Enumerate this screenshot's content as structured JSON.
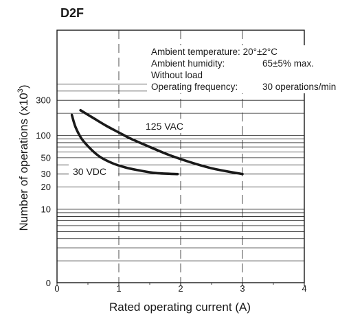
{
  "chart_data": {
    "type": "line",
    "title": "D2F",
    "xlabel": "Rated operating current (A)",
    "ylabel_main": "Number of operations  (x10",
    "ylabel_exp": "3",
    "ylabel_close": ")",
    "x_scale": "linear",
    "y_scale": "log",
    "xlim": [
      0,
      4
    ],
    "ylim": [
      1,
      600
    ],
    "x_ticks": [
      0,
      1,
      2,
      3,
      4
    ],
    "x_tick_labels": [
      "0",
      "1",
      "2",
      "3",
      "4"
    ],
    "y_labeled_ticks": [
      10,
      20,
      30,
      50,
      100,
      300
    ],
    "y_tick_labels": [
      "10",
      "20",
      "30",
      "50",
      "100",
      "300"
    ],
    "y_label_zero": "0",
    "grid": true,
    "series": [
      {
        "name": "125 VAC",
        "x": [
          0.38,
          0.6,
          0.8,
          1.0,
          1.2,
          1.5,
          1.8,
          2.1,
          2.5,
          3.0
        ],
        "y": [
          220,
          170,
          135,
          110,
          90,
          70,
          55,
          45,
          36,
          30
        ]
      },
      {
        "name": "30 VDC",
        "x": [
          0.24,
          0.3,
          0.4,
          0.55,
          0.7,
          0.9,
          1.1,
          1.3,
          1.6,
          1.95
        ],
        "y": [
          190,
          130,
          90,
          65,
          51,
          42,
          37,
          34,
          31,
          30
        ]
      }
    ],
    "conditions": [
      {
        "label": "Ambient temperature: 20°±2°C",
        "value": ""
      },
      {
        "label": "Ambient humidity:",
        "value": "65±5% max."
      },
      {
        "label": "Without load",
        "value": ""
      },
      {
        "label": "Operating frequency:",
        "value": "30 operations/min"
      }
    ]
  }
}
